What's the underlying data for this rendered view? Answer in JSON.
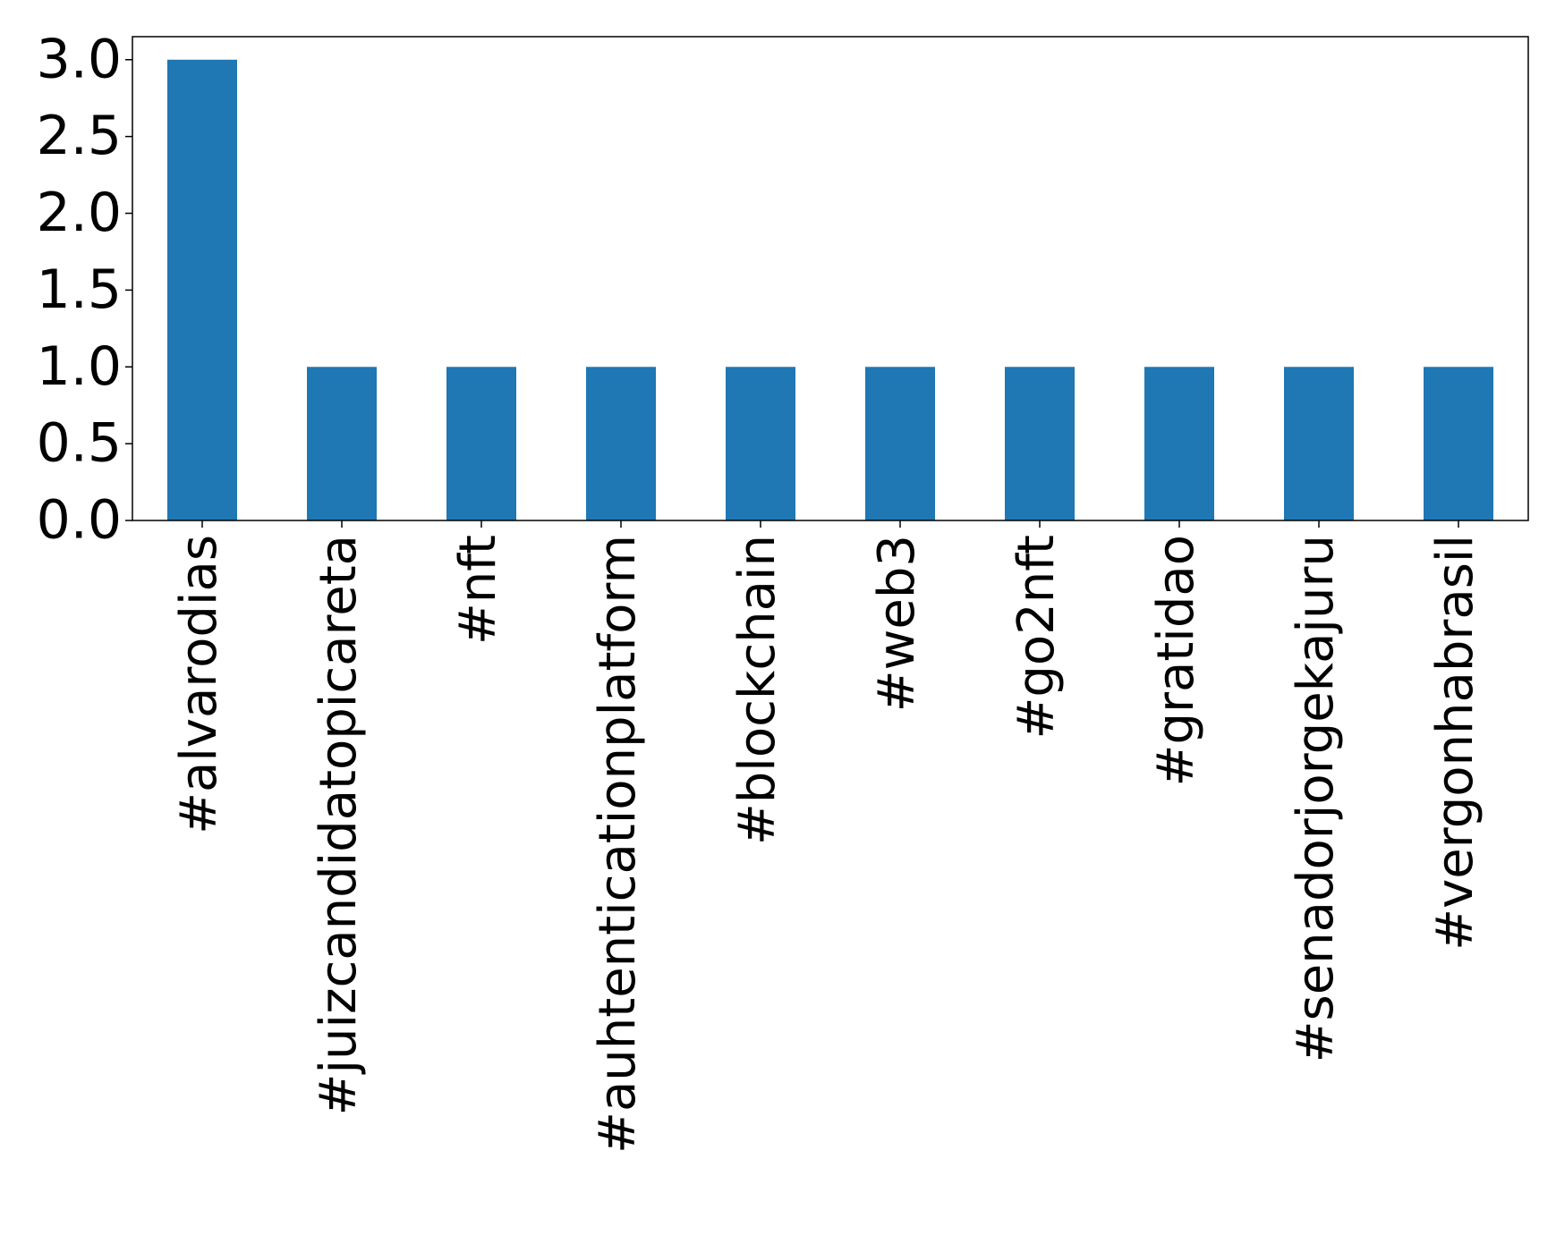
{
  "chart_data": {
    "type": "bar",
    "categories": [
      "#alvarodias",
      "#juizcandidatopicareta",
      "#nft",
      "#auhtenticationplatform",
      "#blockchain",
      "#web3",
      "#go2nft",
      "#gratidao",
      "#senadorjorgekajuru",
      "#vergonhabrasil"
    ],
    "values": [
      3,
      1,
      1,
      1,
      1,
      1,
      1,
      1,
      1,
      1
    ],
    "color": "#1f77b4",
    "ylim": [
      0,
      3.15
    ],
    "yticks": [
      {
        "value": 0,
        "label": "0.0"
      },
      {
        "value": 0.5,
        "label": "0.5"
      },
      {
        "value": 1,
        "label": "1.0"
      },
      {
        "value": 1.5,
        "label": "1.5"
      },
      {
        "value": 2,
        "label": "2.0"
      },
      {
        "value": 2.5,
        "label": "2.5"
      },
      {
        "value": 3,
        "label": "3.0"
      }
    ],
    "grid": false
  }
}
